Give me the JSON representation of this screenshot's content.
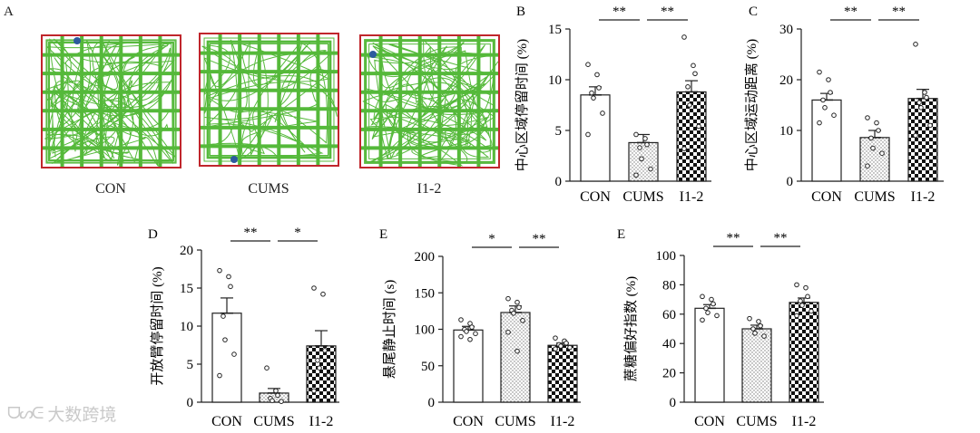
{
  "panel_a": {
    "letter": "A",
    "arenas": [
      {
        "label": "CON"
      },
      {
        "label": "CUMS"
      },
      {
        "label": "I1-2"
      }
    ],
    "colors": {
      "border": "#c0262c",
      "grid": "#55b93a",
      "marker": "#2d5a9e"
    }
  },
  "watermark": {
    "text": "大数跨境",
    "glyph": "ᗜᔕᕮ"
  },
  "colors": {
    "bar_stroke": "#222222",
    "dot_face": "#ffffff"
  },
  "chart_data": [
    {
      "id": "B",
      "letter": "B",
      "type": "bar",
      "ylabel": "中心区域停留时间 (%)",
      "ylim": [
        0,
        15
      ],
      "yticks": [
        0,
        5,
        10,
        15
      ],
      "categories": [
        "CON",
        "CUMS",
        "I1-2"
      ],
      "means": [
        8.5,
        3.8,
        8.8
      ],
      "errors": [
        0.8,
        0.8,
        1.1
      ],
      "fills": [
        "white",
        "dots",
        "checker"
      ],
      "points": [
        [
          11.5,
          10.5,
          9.2,
          8.7,
          8.2,
          6.7,
          4.6
        ],
        [
          4.6,
          4.2,
          3.6,
          3.3,
          2.2,
          1.2,
          0.6
        ],
        [
          14.2,
          11.4,
          10.6,
          9.3,
          7.5,
          5.4,
          3.2
        ]
      ],
      "significance": [
        {
          "from": 0,
          "to": 1,
          "label": "**"
        },
        {
          "from": 1,
          "to": 2,
          "label": "**"
        }
      ]
    },
    {
      "id": "C",
      "letter": "C",
      "type": "bar",
      "ylabel": "中心区域运动距离 (%)",
      "ylim": [
        0,
        30
      ],
      "yticks": [
        0,
        10,
        20,
        30
      ],
      "categories": [
        "CON",
        "CUMS",
        "I1-2"
      ],
      "means": [
        16,
        8.6,
        16.3
      ],
      "errors": [
        1.3,
        1.4,
        1.8
      ],
      "fills": [
        "white",
        "dots",
        "checker"
      ],
      "points": [
        [
          21.5,
          20,
          17.5,
          16,
          14.5,
          13,
          11.5
        ],
        [
          12.5,
          11.5,
          10,
          8.5,
          6.5,
          5.5,
          3
        ],
        [
          27,
          17.5,
          16.5,
          15.5,
          14.5,
          11,
          9
        ]
      ],
      "significance": [
        {
          "from": 0,
          "to": 1,
          "label": "**"
        },
        {
          "from": 1,
          "to": 2,
          "label": "**"
        }
      ]
    },
    {
      "id": "D",
      "letter": "D",
      "type": "bar",
      "ylabel": "开放臂停留时间 (%)",
      "ylim": [
        0,
        20
      ],
      "yticks": [
        0,
        5,
        10,
        15,
        20
      ],
      "categories": [
        "CON",
        "CUMS",
        "I1-2"
      ],
      "means": [
        11.7,
        1.2,
        7.4
      ],
      "errors": [
        2.0,
        0.6,
        2.0
      ],
      "fills": [
        "white",
        "dots",
        "checker"
      ],
      "points": [
        [
          17.3,
          16.5,
          15.2,
          11.3,
          8.2,
          6.3,
          3.5
        ],
        [
          4.5,
          1.5,
          0.9,
          0.5,
          0.2,
          0.1
        ],
        [
          15,
          14.2,
          6.8,
          5.5,
          4.5,
          3.5,
          1.5
        ]
      ],
      "significance": [
        {
          "from": 0,
          "to": 1,
          "label": "**"
        },
        {
          "from": 1,
          "to": 2,
          "label": "*"
        }
      ]
    },
    {
      "id": "E1",
      "letter": "E",
      "type": "bar",
      "ylabel": "悬尾静止时间 (s)",
      "ylim": [
        0,
        200
      ],
      "yticks": [
        0,
        50,
        100,
        150,
        200
      ],
      "categories": [
        "CON",
        "CUMS",
        "I1-2"
      ],
      "means": [
        99,
        123,
        78
      ],
      "errors": [
        5,
        9,
        3
      ],
      "fills": [
        "white",
        "dots",
        "checker"
      ],
      "points": [
        [
          113,
          108,
          103,
          100,
          97,
          94,
          90,
          86
        ],
        [
          142,
          137,
          130,
          126,
          122,
          112,
          96,
          70
        ],
        [
          88,
          84,
          81,
          79,
          77,
          75,
          73
        ]
      ],
      "significance": [
        {
          "from": 0,
          "to": 1,
          "label": "*"
        },
        {
          "from": 1,
          "to": 2,
          "label": "**"
        }
      ]
    },
    {
      "id": "E2",
      "letter": "E",
      "type": "bar",
      "ylabel": "蔗糖偏好指数 (%)",
      "ylim": [
        0,
        100
      ],
      "yticks": [
        0,
        20,
        40,
        60,
        80,
        100
      ],
      "categories": [
        "CON",
        "CUMS",
        "I1-2"
      ],
      "means": [
        64,
        50,
        68
      ],
      "errors": [
        2.5,
        2.5,
        3
      ],
      "fills": [
        "white",
        "dots",
        "checker"
      ],
      "points": [
        [
          72,
          70,
          67,
          64,
          61,
          59,
          56
        ],
        [
          57,
          55,
          52,
          50,
          47,
          45
        ],
        [
          80,
          78,
          72,
          69,
          66,
          62,
          59
        ]
      ],
      "significance": [
        {
          "from": 0,
          "to": 1,
          "label": "**"
        },
        {
          "from": 1,
          "to": 2,
          "label": "**"
        }
      ]
    }
  ]
}
